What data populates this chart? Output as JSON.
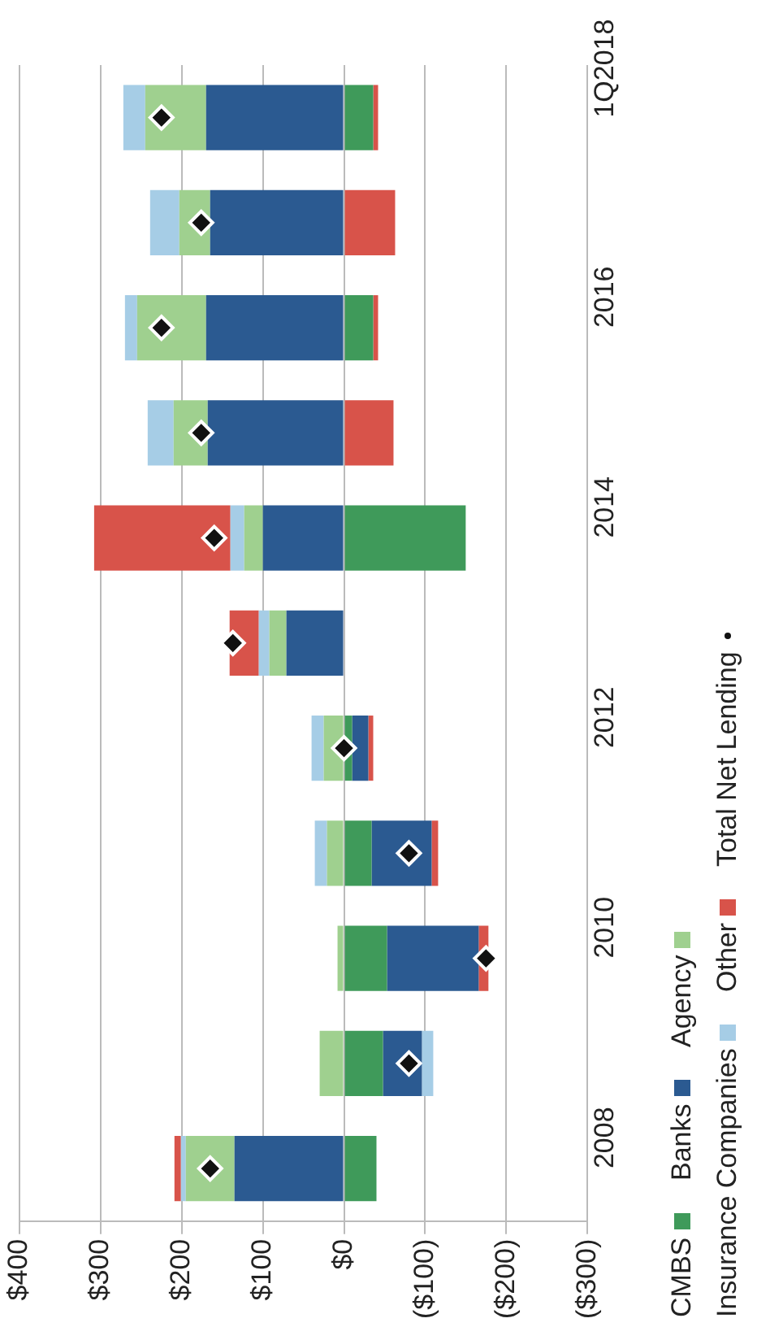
{
  "chart_data": {
    "type": "bar",
    "stacked": true,
    "orientation": "horizontal",
    "categories": [
      "1Q2018",
      null,
      "2016",
      null,
      "2014",
      null,
      "2012",
      null,
      "2010",
      null,
      "2008"
    ],
    "series": [
      {
        "name": "CMBS",
        "color": "#3f9a5a",
        "values": [
          -36,
          0,
          -36,
          0,
          -150,
          0,
          -10,
          -34,
          -53,
          -48,
          -40
        ]
      },
      {
        "name": "Banks",
        "color": "#2b5a91",
        "values": [
          170,
          165,
          170,
          168,
          100,
          71,
          -20,
          -74,
          -113,
          -48,
          135
        ]
      },
      {
        "name": "Agency",
        "color": "#9fd08f",
        "values": [
          75,
          38,
          85,
          42,
          23,
          21,
          25,
          21,
          8,
          30,
          60
        ]
      },
      {
        "name": "Insurance Companies",
        "color": "#a6cde6",
        "values": [
          27,
          36,
          15,
          32,
          17,
          13,
          15,
          15,
          0,
          -14,
          6
        ]
      },
      {
        "name": "Other",
        "color": "#d8534a",
        "values": [
          -6,
          -63,
          -6,
          -61,
          168,
          36,
          -6,
          -8,
          -12,
          0,
          8
        ]
      },
      {
        "name": "Total Net Lending",
        "type": "scatter",
        "marker": "diamond",
        "color": "#111111",
        "values": [
          225,
          176,
          225,
          176,
          160,
          137,
          0,
          -80,
          -175,
          -80,
          165
        ]
      }
    ],
    "xlim": [
      400,
      -300
    ],
    "xticks": [
      {
        "value": 400,
        "label": "$400"
      },
      {
        "value": 300,
        "label": "$300"
      },
      {
        "value": 200,
        "label": "$200"
      },
      {
        "value": 100,
        "label": "$100"
      },
      {
        "value": 0,
        "label": "$0"
      },
      {
        "value": -100,
        "label": "($100)"
      },
      {
        "value": -200,
        "label": "($200)"
      },
      {
        "value": -300,
        "label": "($300)"
      }
    ],
    "grid": "x",
    "legend": "right"
  }
}
